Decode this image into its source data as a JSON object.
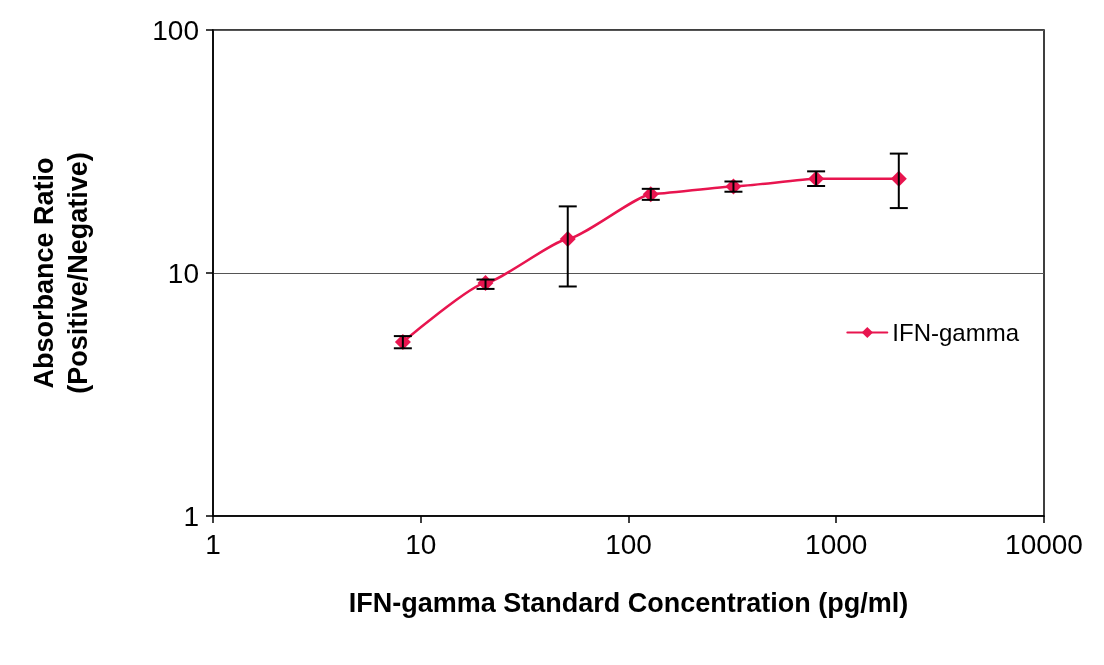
{
  "chart_data": {
    "type": "line",
    "xlabel": "IFN-gamma Standard Concentration (pg/ml)",
    "ylabel": "Absorbance Ratio\n(Positive/Negative)",
    "x": [
      8.2,
      20.5,
      51,
      128,
      320,
      800,
      2000
    ],
    "series": [
      {
        "name": "IFN-gamma",
        "color": "#e8154f",
        "values": [
          5.2,
          9.1,
          13.8,
          21.1,
          22.7,
          24.4,
          24.4
        ],
        "errors": [
          [
            4.9,
            5.5
          ],
          [
            8.6,
            9.4
          ],
          [
            8.8,
            18.8
          ],
          [
            20,
            22.2
          ],
          [
            21.6,
            23.8
          ],
          [
            22.8,
            26.2
          ],
          [
            18.5,
            31
          ]
        ]
      }
    ],
    "log": "xy",
    "xlim": [
      1,
      10000
    ],
    "xticks": [
      1,
      10,
      100,
      1000,
      10000
    ],
    "ylim": [
      1,
      100
    ],
    "yticks": [
      1,
      10,
      100
    ],
    "grid": "y",
    "legend": "right",
    "marker": "diamond",
    "line_style": "solid"
  }
}
